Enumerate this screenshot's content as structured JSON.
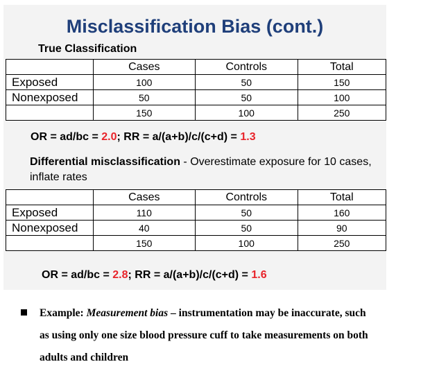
{
  "slide": {
    "title": "Misclassification Bias (cont.)",
    "subtitle": "True Classification",
    "table1": {
      "headers": [
        "",
        "Cases",
        "Controls",
        "Total"
      ],
      "rows": [
        [
          "Exposed",
          "100",
          "50",
          "150"
        ],
        [
          "Nonexposed",
          "50",
          "50",
          "100"
        ],
        [
          "",
          "150",
          "100",
          "250"
        ]
      ]
    },
    "formula1": {
      "or_label": "OR = ad/bc = ",
      "or_value": "2.0",
      "rr_label": "; RR = a/(a+b)/c/(c+d) = ",
      "rr_value": "1.3"
    },
    "differential": {
      "bold": "Differential misclassification",
      "rest": " - Overestimate exposure for 10 cases, inflate rates"
    },
    "table2": {
      "headers": [
        "",
        "Cases",
        "Controls",
        "Total"
      ],
      "rows": [
        [
          "Exposed",
          "110",
          "50",
          "160"
        ],
        [
          "Nonexposed",
          "40",
          "50",
          "90"
        ],
        [
          "",
          "150",
          "100",
          "250"
        ]
      ]
    },
    "formula2": {
      "or_label": "OR = ad/bc = ",
      "or_value": "2.8",
      "rr_label": "; RR = a/(a+b)/c/(c+d) = ",
      "rr_value": "1.6"
    }
  },
  "note": {
    "lead": "Example: ",
    "italic": "Measurement bias",
    "rest": " – instrumentation may be inaccurate, such",
    "line2": "as using only one size blood pressure cuff to take measurements on both",
    "line3": "adults and children"
  },
  "colors": {
    "title": "#1f3f7a",
    "highlight": "#e8232a",
    "slide_bg": "#f3f3f3"
  }
}
